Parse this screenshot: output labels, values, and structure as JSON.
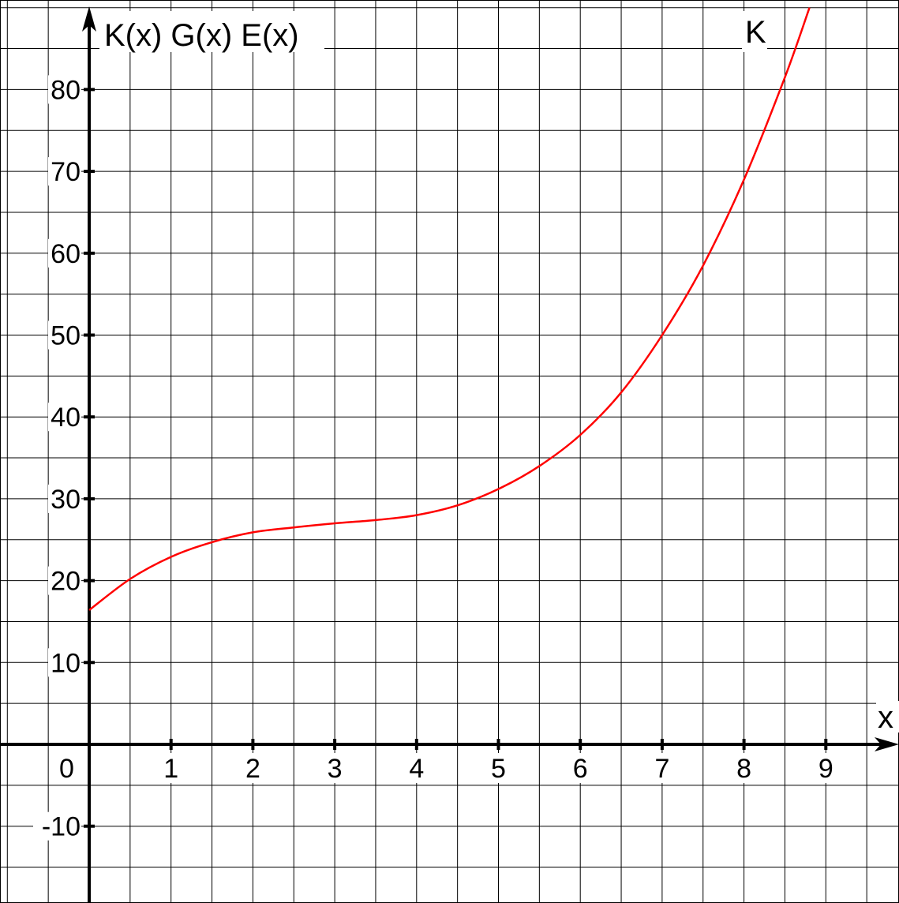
{
  "chart_data": {
    "type": "line",
    "y_axis_label": "K(x) G(x) E(x)",
    "x_axis_label": "x",
    "curve_label": "K",
    "origin_label": "0",
    "x_tick_labels": [
      "1",
      "2",
      "3",
      "4",
      "5",
      "6",
      "7",
      "8",
      "9"
    ],
    "y_tick_labels": [
      "80",
      "70",
      "60",
      "50",
      "40",
      "30",
      "20",
      "10",
      "-10"
    ],
    "x_range": [
      -1,
      10
    ],
    "y_range": [
      -20,
      90
    ],
    "grid": true,
    "series": [
      {
        "color": "#ff0000",
        "x": [
          0,
          0.5,
          1,
          1.5,
          2,
          2.5,
          3,
          3.5,
          4,
          4.5,
          5,
          5.5,
          6,
          6.5,
          7,
          7.5,
          8,
          8.5,
          8.8
        ],
        "y": [
          16.4,
          20.2,
          22.9,
          24.7,
          25.9,
          26.5,
          27.0,
          27.4,
          28.0,
          29.2,
          31.2,
          34.0,
          37.8,
          43.0,
          50.0,
          58.5,
          69.0,
          81.5,
          90.0
        ]
      }
    ],
    "colors": {
      "curve": "#ff0000",
      "grid": "#000000",
      "axis": "#000000"
    }
  }
}
